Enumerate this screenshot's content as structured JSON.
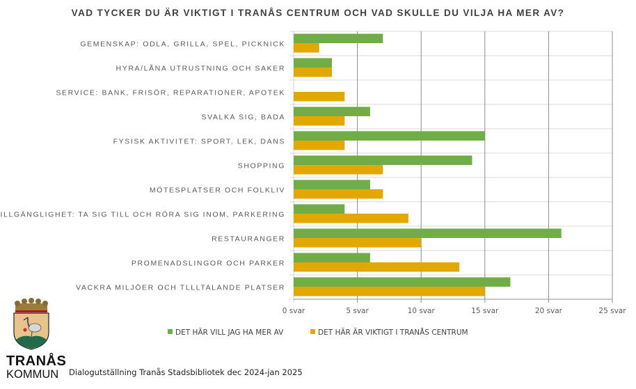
{
  "chart_data": {
    "type": "bar",
    "orientation": "horizontal",
    "title": "VAD TYCKER DU ÄR VIKTIGT I TRANÅS CENTRUM OCH VAD SKULLE DU VILJA HA MER AV?",
    "categories": [
      "GEMENSKAP: ODLA, GRILLA, SPEL, PICKNICK",
      "HYRA/LÅNA UTRUSTNING OCH SAKER",
      "SERVICE: BANK, FRISÖR, REPARATIONER, APOTEK",
      "SVALKA SIG, BADA",
      "FYSISK AKTIVITET: SPORT, LEK, DANS",
      "SHOPPING",
      "MÖTESPLATSER OCH FOLKLIV",
      "TILLGÄNGLIGHET: TA SIG TILL OCH RÖRA SIG INOM, PARKERING",
      "RESTAURANGER",
      "PROMENADSLINGOR OCH PARKER",
      "VACKRA MILJÖER OCH TLLLTALANDE PLATSER"
    ],
    "series": [
      {
        "name": "DET HÄR VILL JAG HA MER AV",
        "color": "#70AD47",
        "values": [
          7,
          3,
          0,
          6,
          15,
          14,
          6,
          4,
          21,
          6,
          17
        ]
      },
      {
        "name": "DET HÄR ÄR VIKTIGT I TRANÅS  CENTRUM",
        "color": "#E2A800",
        "values": [
          2,
          3,
          4,
          4,
          4,
          7,
          7,
          9,
          10,
          13,
          15
        ]
      }
    ],
    "xlim": [
      0,
      25
    ],
    "xticks": [
      0,
      5,
      10,
      15,
      20,
      25
    ],
    "xtick_labels": [
      "0 svar",
      "5 svar",
      "10 svar",
      "15 svar",
      "20 svar",
      "25 svar"
    ],
    "xlabel": "",
    "ylabel": "",
    "grid": true,
    "legend_position": "bottom"
  },
  "branding": {
    "name_line1": "TRANÅS",
    "name_line2": "KOMMUN",
    "logo": "coat-of-arms-crane-crown"
  },
  "footer": {
    "caption": "Dialogutställning Tranås Stadsbibliotek dec 2024-jan 2025"
  }
}
